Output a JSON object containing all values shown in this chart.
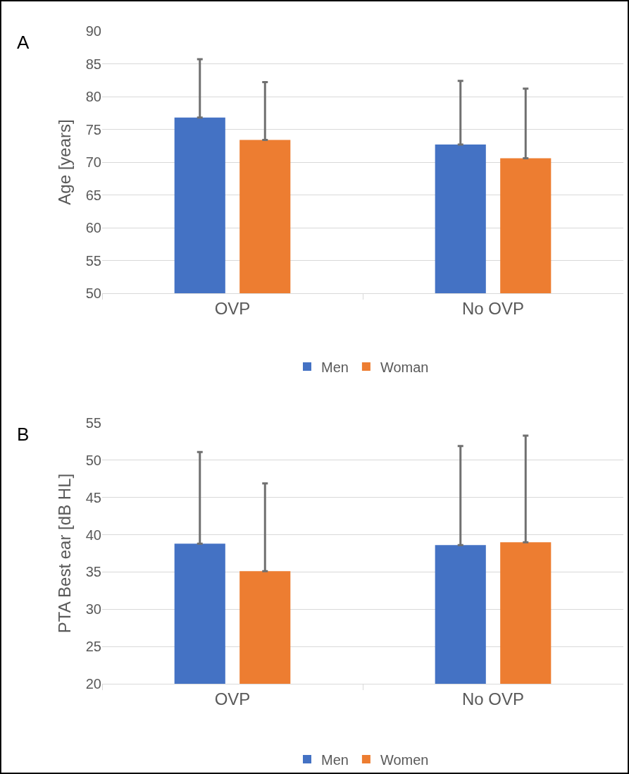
{
  "chart_data": [
    {
      "type": "bar",
      "annotations": [
        "A"
      ],
      "ylabel": "Age [years]",
      "categories": [
        "OVP",
        "No OVP"
      ],
      "series": [
        {
          "name": "Men",
          "color": "#4472c4",
          "values": [
            76.8,
            72.7
          ],
          "errors": [
            [
              76.8,
              85.7
            ],
            [
              72.7,
              82.4
            ]
          ]
        },
        {
          "name": "Woman",
          "color": "#ed7d31",
          "values": [
            73.4,
            70.6
          ],
          "errors": [
            [
              73.4,
              82.2
            ],
            [
              70.6,
              81.2
            ]
          ]
        }
      ],
      "ylim": [
        50,
        90
      ],
      "yticks": [
        50,
        55,
        60,
        65,
        70,
        75,
        80,
        85,
        90
      ],
      "grid": "y",
      "legend": "bottom"
    },
    {
      "type": "bar",
      "annotations": [
        "B"
      ],
      "ylabel": "PTA Best ear [dB HL]",
      "categories": [
        "OVP",
        "No OVP"
      ],
      "series": [
        {
          "name": "Men",
          "color": "#4472c4",
          "values": [
            38.8,
            38.6
          ],
          "errors": [
            [
              38.8,
              51.1
            ],
            [
              38.6,
              51.9
            ]
          ]
        },
        {
          "name": "Women",
          "color": "#ed7d31",
          "values": [
            35.1,
            39.0
          ],
          "errors": [
            [
              35.1,
              46.9
            ],
            [
              39.0,
              53.3
            ]
          ]
        }
      ],
      "ylim": [
        20,
        55
      ],
      "yticks": [
        20,
        25,
        30,
        35,
        40,
        45,
        50,
        55
      ],
      "grid": "y",
      "legend": "bottom"
    }
  ]
}
